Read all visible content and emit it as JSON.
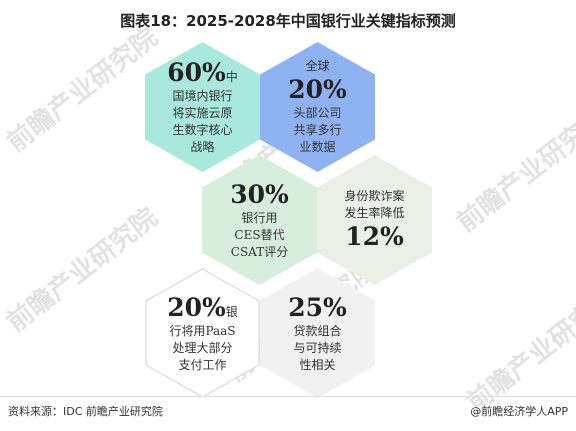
{
  "title": "图表18：2025-2028年中国银行业关键指标预测",
  "watermark": "前瞻产业研究院",
  "hexagons": [
    {
      "id": "h1",
      "pct": "60%",
      "pct_suffix": "中",
      "prefix": "",
      "lines": [
        "国境内银行",
        "将实施云原",
        "生数字核心",
        "战略"
      ],
      "color": "#a9e8dd",
      "outline": false
    },
    {
      "id": "h2",
      "pct": "20%",
      "pct_suffix": "",
      "prefix": "全球",
      "lines": [
        "头部公司",
        "共享多行",
        "业数据"
      ],
      "color": "#8fb3f2",
      "outline": false
    },
    {
      "id": "h3",
      "pct": "30%",
      "pct_suffix": "",
      "prefix": "",
      "lines": [
        "银行用",
        "CES替代",
        "CSAT评分"
      ],
      "color": "#d8eedd",
      "outline": false
    },
    {
      "id": "h4",
      "pct": "12%",
      "pct_suffix": "",
      "prefix": "",
      "lines": [
        "身份欺诈案",
        "发生率降低"
      ],
      "color": "#ecefe6",
      "outline": false
    },
    {
      "id": "h5",
      "pct": "20%",
      "pct_suffix": "银",
      "prefix": "",
      "lines": [
        "行将用PaaS",
        "处理大部分",
        "支付工作"
      ],
      "color": "#ffffff",
      "outline": true
    },
    {
      "id": "h6",
      "pct": "25%",
      "pct_suffix": "",
      "prefix": "",
      "lines": [
        "贷款组合",
        "与可持续",
        "性相关"
      ],
      "color": "#f1f1f1",
      "outline": false
    }
  ],
  "footer": {
    "source": "资料来源：IDC 前瞻产业研究院",
    "brand": "@前瞻经济学人APP"
  }
}
